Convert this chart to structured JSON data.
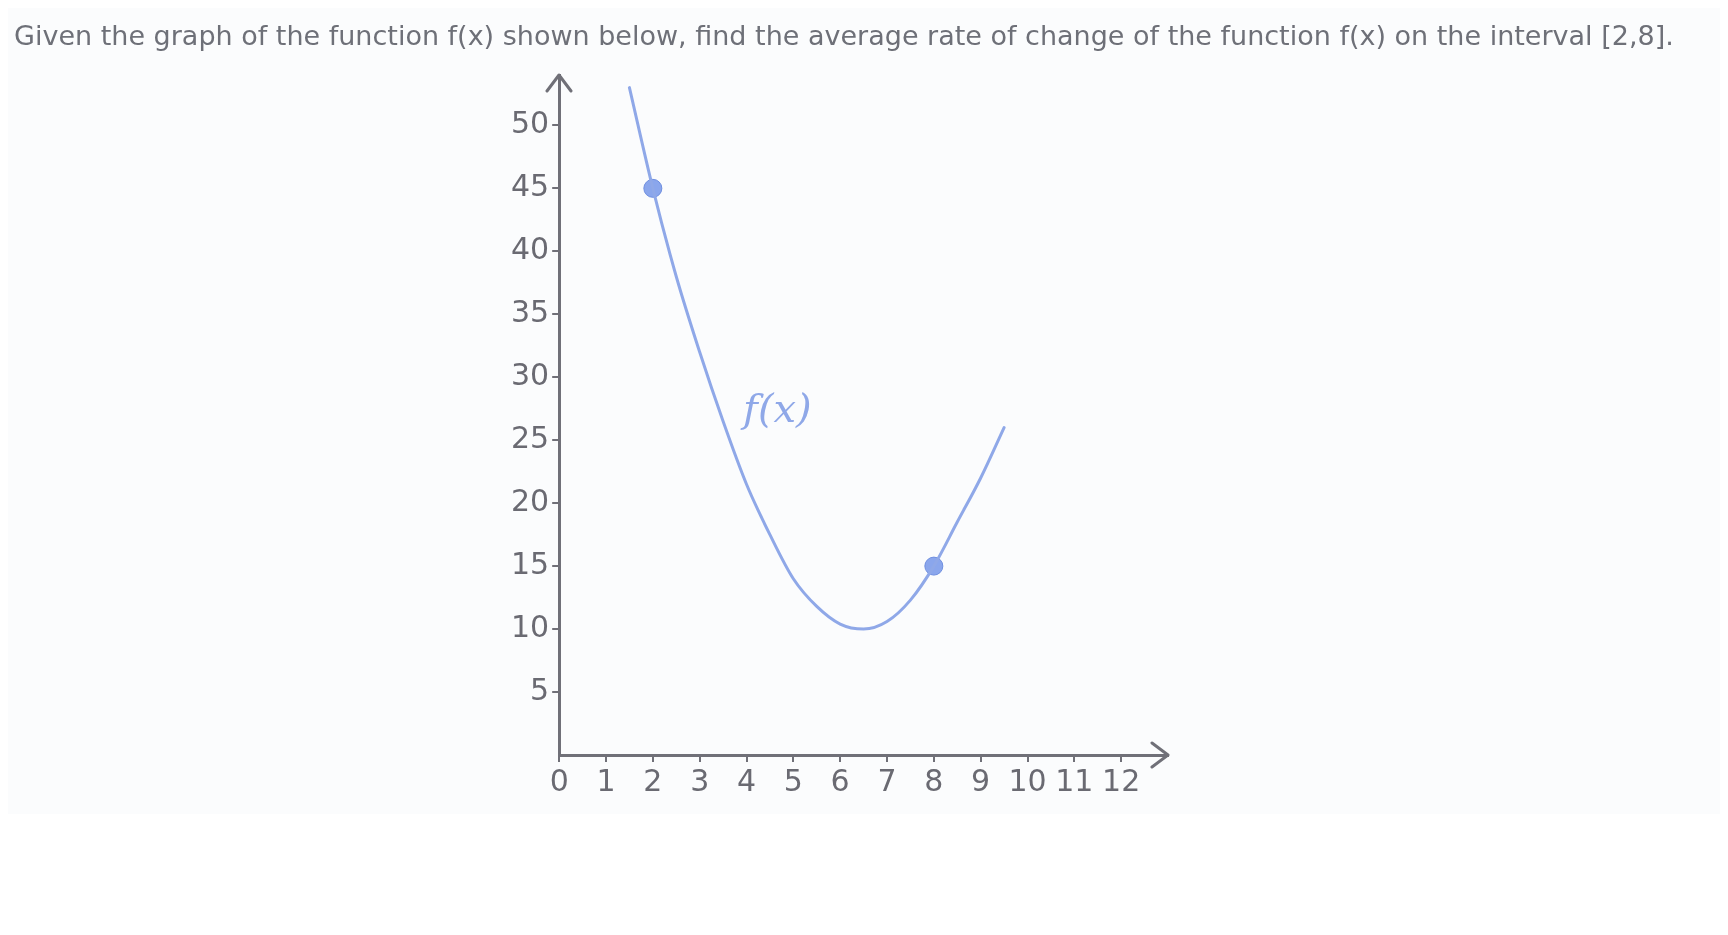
{
  "chart_data": {
    "type": "line",
    "title": "Given the graph of the function f(x) shown below, find the average rate of change of the function f(x) on the interval [2,8].",
    "series": [
      {
        "name": "f(x)",
        "color": "#8fa8e8",
        "marker": "none",
        "x": [
          1.5,
          2,
          2.5,
          3,
          3.5,
          4,
          4.5,
          5,
          5.5,
          6,
          6.5,
          7,
          7.5,
          8,
          8.5,
          9,
          9.5
        ],
        "values": [
          53,
          45,
          38,
          32,
          26.5,
          21.5,
          17.5,
          14,
          11.8,
          10.4,
          10,
          10.6,
          12.3,
          15,
          18.5,
          22,
          26
        ]
      },
      {
        "type": "scatter",
        "color": "#8aa6ec",
        "marker": "circle",
        "x": [
          2,
          8
        ],
        "values": [
          45,
          15
        ]
      }
    ],
    "xlim": [
      0,
      13
    ],
    "xticks": [
      0,
      1,
      2,
      3,
      4,
      5,
      6,
      7,
      8,
      9,
      10,
      11,
      12
    ],
    "ylim": [
      0,
      54
    ],
    "yticks": [
      5,
      10,
      15,
      20,
      25,
      30,
      35,
      40,
      45,
      50
    ],
    "grid": false,
    "legend": false
  }
}
